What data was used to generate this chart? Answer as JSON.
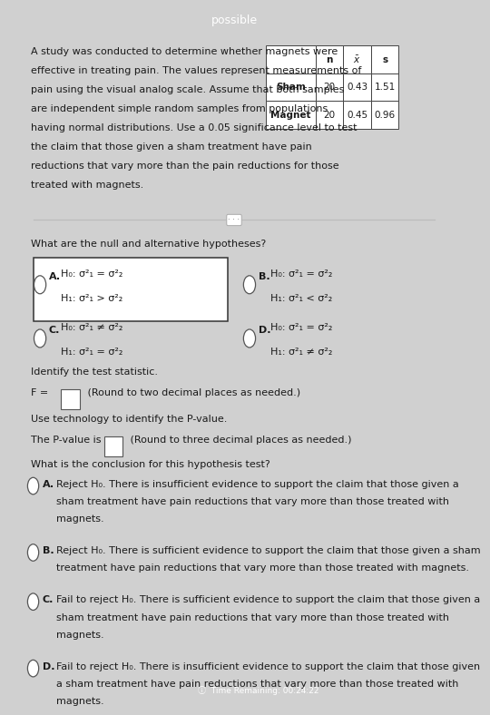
{
  "title": "possible",
  "title_bg": "#4a7c6f",
  "title_color": "white",
  "body_bg": "#d0d0d0",
  "content_bg": "white",
  "intro_lines": [
    "A study was conducted to determine whether magnets were",
    "effective in treating pain. The values represent measurements of",
    "pain using the visual analog scale. Assume that both samples",
    "are independent simple random samples from populations",
    "having normal distributions. Use a 0.05 significance level to test",
    "the claim that those given a sham treatment have pain",
    "reductions that vary more than the pain reductions for those",
    "treated with magnets."
  ],
  "table_headers": [
    "",
    "n",
    "x",
    "s"
  ],
  "table_rows": [
    [
      "Sham",
      "20",
      "0.43",
      "1.51"
    ],
    [
      "Magnet",
      "20",
      "0.45",
      "0.96"
    ]
  ],
  "hypotheses_question": "What are the null and alternative hypotheses?",
  "options": [
    {
      "label": "A.",
      "line1": "H₀: σ²₁ = σ²₂",
      "line2": "H₁: σ²₁ > σ²₂",
      "selected": true
    },
    {
      "label": "B.",
      "line1": "H₀: σ²₁ = σ²₂",
      "line2": "H₁: σ²₁ < σ²₂",
      "selected": false
    },
    {
      "label": "C.",
      "line1": "H₀: σ²₁ ≠ σ²₂",
      "line2": "H₁: σ²₁ = σ²₂",
      "selected": false
    },
    {
      "label": "D.",
      "line1": "H₀: σ²₁ = σ²₂",
      "line2": "H₁: σ²₁ ≠ σ²₂",
      "selected": false
    }
  ],
  "test_stat_label": "Identify the test statistic.",
  "test_stat_eq": "F = ",
  "test_stat_hint": " (Round to two decimal places as needed.)",
  "pvalue_label": "Use technology to identify the P-value.",
  "pvalue_line": "The P-value is ",
  "pvalue_hint": " (Round to three decimal places as needed.)",
  "conclusion_question": "What is the conclusion for this hypothesis test?",
  "conclusions": [
    {
      "label": "A.",
      "lines": [
        "Reject H₀. There is insufficient evidence to support the claim that those given a",
        "sham treatment have pain reductions that vary more than those treated with",
        "magnets."
      ]
    },
    {
      "label": "B.",
      "lines": [
        "Reject H₀. There is sufficient evidence to support the claim that those given a sham",
        "treatment have pain reductions that vary more than those treated with magnets."
      ]
    },
    {
      "label": "C.",
      "lines": [
        "Fail to reject H₀. There is sufficient evidence to support the claim that those given a",
        "sham treatment have pain reductions that vary more than those treated with",
        "magnets."
      ]
    },
    {
      "label": "D.",
      "lines": [
        "Fail to reject H₀. There is insufficient evidence to support the claim that those given",
        "a sham treatment have pain reductions that vary more than those treated with",
        "magnets."
      ]
    }
  ],
  "font_size": 8.0,
  "text_color": "#1a1a1a"
}
